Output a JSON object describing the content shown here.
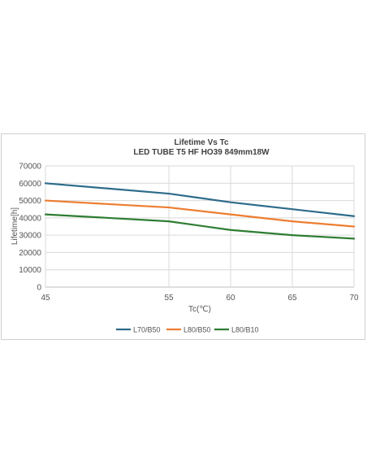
{
  "chart_data": {
    "type": "line",
    "title": "Lifetime Vs Tc",
    "subtitle": "LED TUBE T5 HF HO39  849mm18W",
    "xlabel": "Tc(℃)",
    "ylabel": "Lifetime[h]",
    "x": [
      45,
      55,
      60,
      65,
      70
    ],
    "xlim": [
      45,
      70
    ],
    "ylim": [
      0,
      70000
    ],
    "yticks": [
      0,
      10000,
      20000,
      30000,
      40000,
      50000,
      60000,
      70000
    ],
    "grid": true,
    "legend_position": "bottom",
    "series": [
      {
        "name": "L70/B50",
        "color": "#2e6b8a",
        "values": [
          60000,
          54000,
          49000,
          45000,
          41000
        ]
      },
      {
        "name": "L80/B50",
        "color": "#ed7d31",
        "values": [
          50000,
          46000,
          42000,
          38000,
          35000
        ]
      },
      {
        "name": "L80/B10",
        "color": "#2e7d32",
        "values": [
          42000,
          38000,
          33000,
          30000,
          28000
        ]
      }
    ]
  }
}
